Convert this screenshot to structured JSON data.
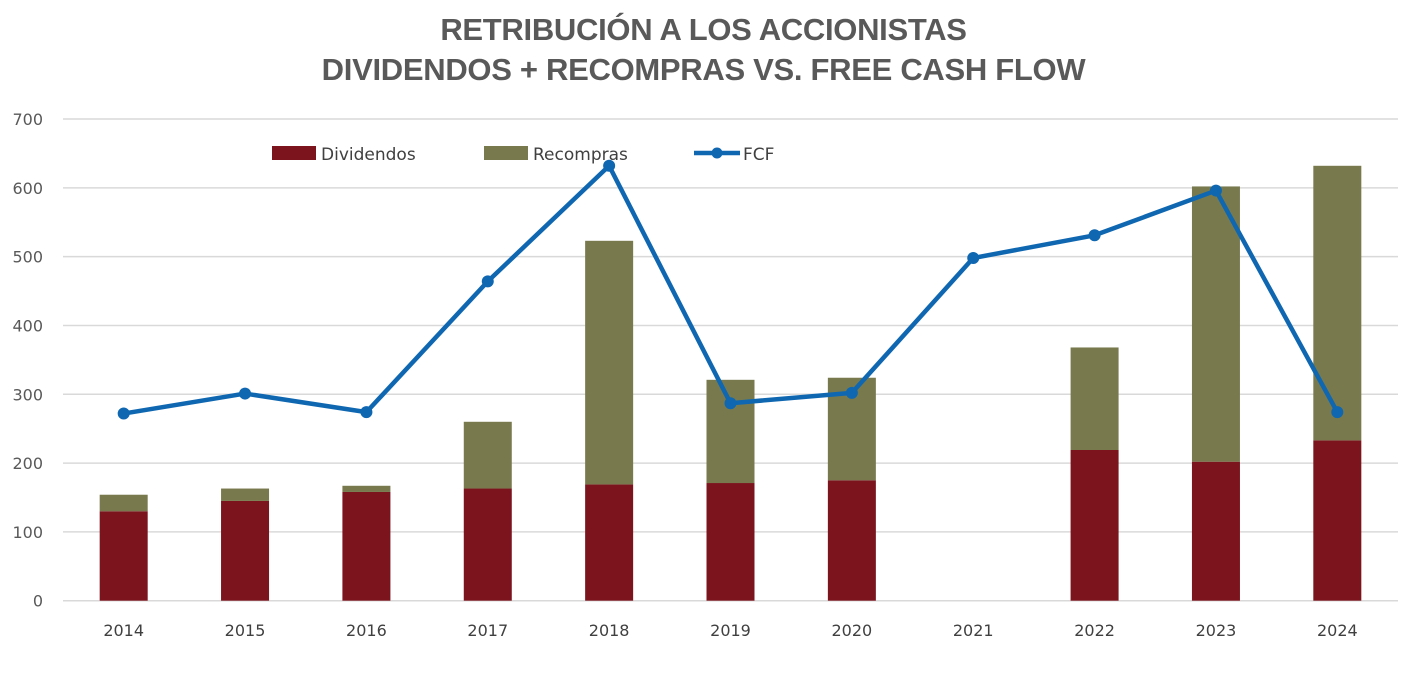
{
  "chart_data": {
    "type": "bar",
    "stacked": true,
    "title": "RETRIBUCIÓN A LOS ACCIONISTAS",
    "subtitle": "DIVIDENDOS + RECOMPRAS VS. FREE CASH FLOW",
    "xlabel": "",
    "ylabel": "",
    "ylim": [
      0,
      700
    ],
    "yticks": [
      0,
      100,
      200,
      300,
      400,
      500,
      600,
      700
    ],
    "grid": true,
    "legend_position": "top-left",
    "categories": [
      "2014",
      "2015",
      "2016",
      "2017",
      "2018",
      "2019",
      "2020",
      "2021",
      "2022",
      "2023",
      "2024"
    ],
    "series": [
      {
        "name": "Dividendos",
        "type": "bar",
        "color": "#7B141D",
        "values": [
          130,
          145,
          158,
          163,
          169,
          171,
          175,
          0,
          219,
          202,
          233
        ]
      },
      {
        "name": "Recompras",
        "type": "bar",
        "color": "#787A4E",
        "values": [
          24,
          18,
          9,
          97,
          354,
          150,
          149,
          0,
          149,
          400,
          399
        ]
      },
      {
        "name": "FCF",
        "type": "line",
        "color": "#0F67B1",
        "values": [
          272,
          301,
          274,
          464,
          632,
          287,
          302,
          498,
          531,
          596,
          274
        ]
      }
    ]
  }
}
